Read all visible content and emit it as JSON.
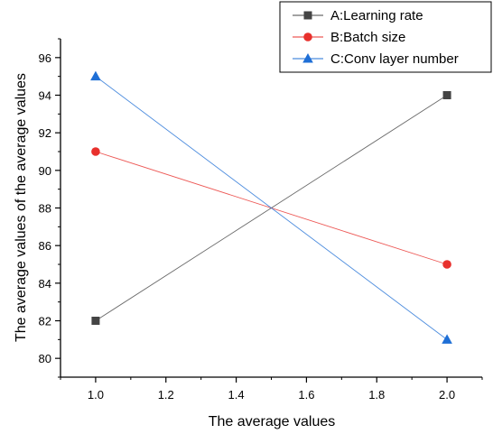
{
  "chart_data": {
    "type": "line",
    "title": "",
    "xlabel": "The average values",
    "ylabel": "The average values of the average values",
    "xlim": [
      0.9,
      2.1
    ],
    "ylim": [
      79,
      97
    ],
    "xticks": [
      "1.0",
      "1.2",
      "1.4",
      "1.6",
      "1.8",
      "2.0"
    ],
    "yticks": [
      "80",
      "82",
      "84",
      "86",
      "88",
      "90",
      "92",
      "94",
      "96"
    ],
    "grid": false,
    "legend_position": "top-right",
    "x": [
      1.0,
      2.0
    ],
    "series": [
      {
        "name": "A:Learning rate",
        "values": [
          82,
          94
        ],
        "color": "#444444",
        "marker": "square"
      },
      {
        "name": "B:Batch size",
        "values": [
          91,
          85
        ],
        "color": "#e8302c",
        "marker": "circle"
      },
      {
        "name": "C:Conv layer number",
        "values": [
          95,
          81
        ],
        "color": "#1f6fd6",
        "marker": "triangle"
      }
    ]
  }
}
